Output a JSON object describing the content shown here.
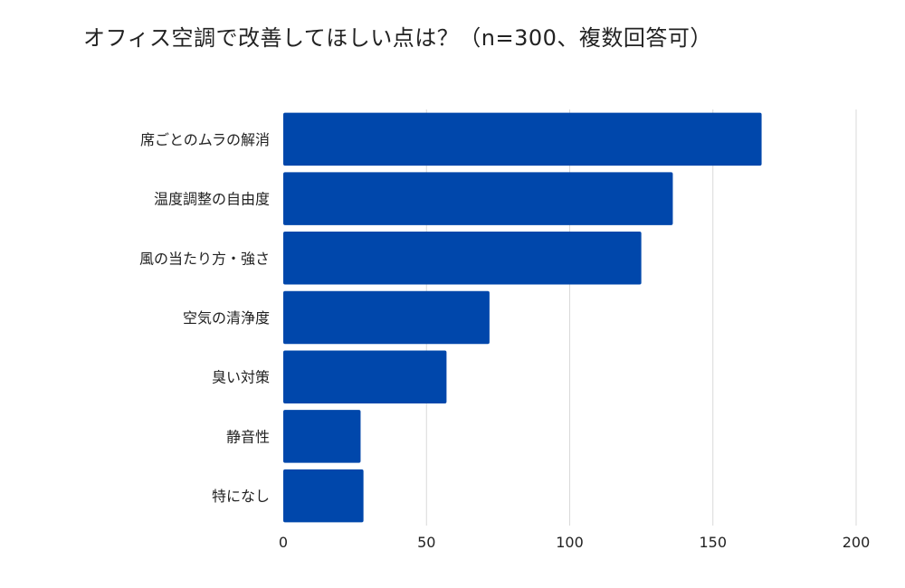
{
  "chart_data": {
    "type": "bar",
    "orientation": "horizontal",
    "title": "オフィス空調で改善してほしい点は？（n=300、複数回答可）",
    "categories": [
      "席ごとのムラの解消",
      "温度調整の自由度",
      "風の当たり方・強さ",
      "空気の清浄度",
      "臭い対策",
      "静音性",
      "特になし"
    ],
    "values": [
      167,
      136,
      125,
      72,
      57,
      27,
      28
    ],
    "xlim": [
      0,
      200
    ],
    "xticks": [
      0,
      50,
      100,
      150,
      200
    ],
    "grid": "vertical",
    "legend": "none",
    "bar_color": "#0047AB"
  }
}
